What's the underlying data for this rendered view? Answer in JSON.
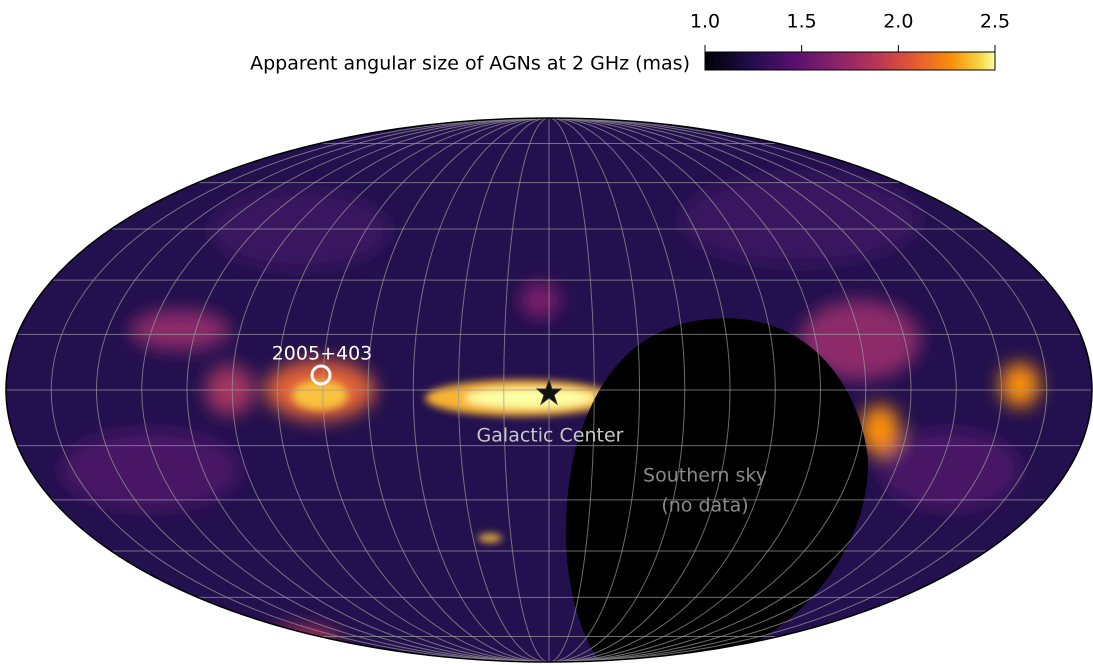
{
  "chart_data": {
    "type": "skymap",
    "projection": "mollweide",
    "colorbar_label": "Apparent angular size of AGNs at 2 GHz (mas)",
    "clim": [
      1.0,
      2.5
    ],
    "cticks": [
      {
        "value": 1.0,
        "label": "1.0"
      },
      {
        "value": 1.5,
        "label": "1.5"
      },
      {
        "value": 2.0,
        "label": "2.0"
      },
      {
        "value": 2.5,
        "label": "2.5"
      }
    ],
    "colormap": "inferno",
    "grid": true,
    "annotations": [
      "2005+403",
      "Galactic Center",
      "Southern sky",
      "(no data)"
    ]
  }
}
